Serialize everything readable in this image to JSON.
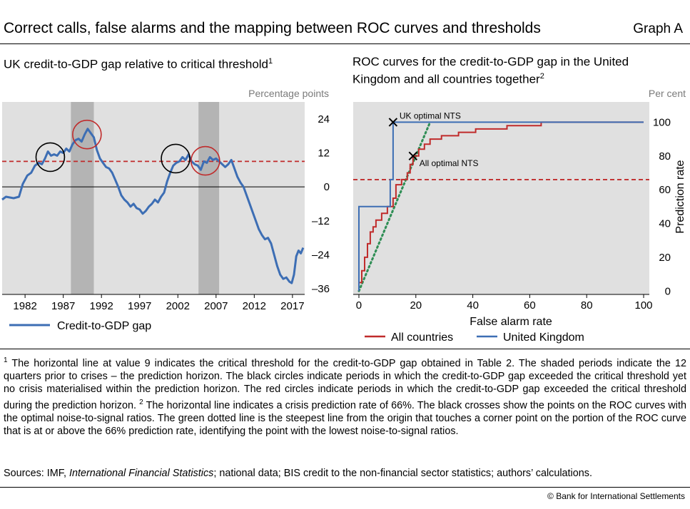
{
  "header": {
    "title": "Correct calls, false alarms and the mapping between ROC curves and thresholds",
    "graph_label": "Graph A"
  },
  "left_panel": {
    "title": "UK credit-to-GDP gap relative to critical threshold",
    "title_sup": "1",
    "units": "Percentage points"
  },
  "right_panel": {
    "title_line1": "ROC curves for the credit-to-GDP gap in the United",
    "title_line2": "Kingdom and all countries together",
    "title_sup": "2",
    "units": "Per cent"
  },
  "footnote": {
    "mark1": "1",
    "text1": "The horizontal line at value 9 indicates the critical threshold for the credit-to-GDP gap obtained in Table 2. The shaded periods indicate the 12 quarters prior to crises – the prediction horizon. The black circles indicate periods in which the credit-to-GDP gap exceeded the critical threshold yet no crisis materialised within the prediction horizon. The red circles indicate periods in which the credit-to-GDP gap exceeded the critical threshold during the prediction horizon.",
    "mark2": "2",
    "text2": "The horizontal line indicates a crisis prediction rate of 66%. The black crosses show the points on the ROC curves with the optimal noise-to-signal ratios. The green dotted line is the steepest line from the origin that touches a corner point on the portion of the ROC curve that is at or above the 66% prediction rate, identifying the point with the lowest noise-to-signal ratios."
  },
  "sources": {
    "prefix": "Sources: IMF, ",
    "italic": "International Financial Statistics",
    "suffix": "; national data; BIS credit to the non-financial sector statistics; authors’ calculations."
  },
  "copyright": "© Bank for International Settlements",
  "chart_data": [
    {
      "type": "line",
      "xlim": [
        1979.0,
        2018.6
      ],
      "ylim": [
        -38,
        30
      ],
      "x_ticks": [
        "1982",
        "1987",
        "1992",
        "1997",
        "2002",
        "2007",
        "2012",
        "2017"
      ],
      "y_ticks": [
        24,
        12,
        0,
        -12,
        -24,
        -36
      ],
      "y_tick_labels": [
        "24",
        "12",
        "0",
        "–12",
        "–24",
        "–36"
      ],
      "grid": false,
      "threshold": 9,
      "shaded_periods": [
        [
          1988.0,
          1991.0
        ],
        [
          2004.7,
          2007.4
        ]
      ],
      "black_circles": [
        {
          "x": 1985.3,
          "y": 10.5
        },
        {
          "x": 2001.7,
          "y": 10.0
        }
      ],
      "red_circles": [
        {
          "x": 1990.1,
          "y": 18.5
        },
        {
          "x": 2005.6,
          "y": 9.2
        }
      ],
      "legend": [
        {
          "name": "Credit-to-GDP gap",
          "color": "#3d6eb4"
        }
      ],
      "series": [
        {
          "name": "Credit-to-GDP gap",
          "color": "#3d6eb4",
          "points": [
            [
              1979.0,
              -4.5
            ],
            [
              1979.5,
              -3.5
            ],
            [
              1980.5,
              -4.0
            ],
            [
              1981.2,
              -3.5
            ],
            [
              1981.7,
              1.0
            ],
            [
              1982.3,
              4.0
            ],
            [
              1982.8,
              5.0
            ],
            [
              1983.3,
              7.5
            ],
            [
              1983.8,
              8.5
            ],
            [
              1984.2,
              8.0
            ],
            [
              1984.6,
              10.0
            ],
            [
              1985.0,
              12.5
            ],
            [
              1985.4,
              11.0
            ],
            [
              1985.8,
              11.5
            ],
            [
              1986.2,
              11.0
            ],
            [
              1986.6,
              12.5
            ],
            [
              1987.0,
              12.0
            ],
            [
              1987.4,
              13.5
            ],
            [
              1987.8,
              12.5
            ],
            [
              1988.2,
              15.0
            ],
            [
              1988.6,
              16.5
            ],
            [
              1989.0,
              17.0
            ],
            [
              1989.4,
              16.0
            ],
            [
              1989.8,
              18.5
            ],
            [
              1990.2,
              20.5
            ],
            [
              1990.6,
              19.0
            ],
            [
              1991.0,
              17.5
            ],
            [
              1991.4,
              13.0
            ],
            [
              1991.8,
              10.0
            ],
            [
              1992.2,
              8.5
            ],
            [
              1992.6,
              7.0
            ],
            [
              1993.0,
              6.5
            ],
            [
              1993.4,
              5.0
            ],
            [
              1993.8,
              2.5
            ],
            [
              1994.2,
              0.0
            ],
            [
              1994.6,
              -3.0
            ],
            [
              1995.0,
              -4.5
            ],
            [
              1995.4,
              -5.5
            ],
            [
              1995.8,
              -7.0
            ],
            [
              1996.2,
              -6.0
            ],
            [
              1996.6,
              -7.5
            ],
            [
              1997.0,
              -8.0
            ],
            [
              1997.4,
              -9.5
            ],
            [
              1997.8,
              -8.5
            ],
            [
              1998.2,
              -7.0
            ],
            [
              1998.6,
              -6.0
            ],
            [
              1999.0,
              -4.5
            ],
            [
              1999.4,
              -5.5
            ],
            [
              1999.8,
              -3.5
            ],
            [
              2000.2,
              -2.0
            ],
            [
              2000.6,
              2.0
            ],
            [
              2001.0,
              5.0
            ],
            [
              2001.4,
              7.5
            ],
            [
              2001.8,
              8.5
            ],
            [
              2002.2,
              9.0
            ],
            [
              2002.6,
              10.5
            ],
            [
              2003.0,
              9.5
            ],
            [
              2003.4,
              11.5
            ],
            [
              2003.8,
              9.0
            ],
            [
              2004.2,
              8.0
            ],
            [
              2004.6,
              7.5
            ],
            [
              2005.0,
              6.0
            ],
            [
              2005.4,
              9.0
            ],
            [
              2005.8,
              8.5
            ],
            [
              2006.2,
              10.5
            ],
            [
              2006.6,
              9.5
            ],
            [
              2007.0,
              10.0
            ],
            [
              2007.4,
              9.0
            ],
            [
              2007.8,
              8.0
            ],
            [
              2008.2,
              7.0
            ],
            [
              2008.6,
              8.0
            ],
            [
              2009.0,
              9.5
            ],
            [
              2009.4,
              6.5
            ],
            [
              2009.8,
              3.5
            ],
            [
              2010.2,
              1.5
            ],
            [
              2010.6,
              0.0
            ],
            [
              2011.0,
              -3.0
            ],
            [
              2011.4,
              -6.0
            ],
            [
              2011.8,
              -9.0
            ],
            [
              2012.2,
              -12.0
            ],
            [
              2012.6,
              -15.0
            ],
            [
              2013.0,
              -17.0
            ],
            [
              2013.4,
              -18.5
            ],
            [
              2013.8,
              -18.0
            ],
            [
              2014.2,
              -20.0
            ],
            [
              2014.6,
              -24.0
            ],
            [
              2015.0,
              -28.0
            ],
            [
              2015.4,
              -31.0
            ],
            [
              2015.8,
              -32.5
            ],
            [
              2016.2,
              -32.0
            ],
            [
              2016.6,
              -33.5
            ],
            [
              2016.9,
              -34.0
            ],
            [
              2017.2,
              -31.0
            ],
            [
              2017.5,
              -24.5
            ],
            [
              2017.8,
              -22.5
            ],
            [
              2018.1,
              -23.5
            ],
            [
              2018.4,
              -21.5
            ]
          ]
        }
      ]
    },
    {
      "type": "line",
      "xlabel": "False alarm rate",
      "ylabel": "Prediction rate",
      "xlim": [
        -2,
        102
      ],
      "ylim": [
        -2,
        112
      ],
      "x_ticks": [
        0,
        20,
        40,
        60,
        80,
        100
      ],
      "y_ticks": [
        0,
        20,
        40,
        60,
        80,
        100
      ],
      "grid": false,
      "prediction_rate_line": 66,
      "optimal_points": [
        {
          "label": "UK optimal NTS",
          "x": 12,
          "y": 100
        },
        {
          "label": "All optimal NTS",
          "x": 19,
          "y": 80
        }
      ],
      "steepest_line": {
        "color": "#2f8e55",
        "from": [
          0,
          0
        ],
        "to": [
          25,
          100
        ]
      },
      "legend": [
        {
          "name": "All countries",
          "color": "#c02b2b"
        },
        {
          "name": "United Kingdom",
          "color": "#3d6eb4"
        }
      ],
      "series": [
        {
          "name": "All countries",
          "color": "#c02b2b",
          "points": [
            [
              0,
              0
            ],
            [
              0,
              5
            ],
            [
              1,
              5
            ],
            [
              1,
              12
            ],
            [
              2,
              12
            ],
            [
              2,
              20
            ],
            [
              3,
              20
            ],
            [
              3,
              28
            ],
            [
              4,
              28
            ],
            [
              4,
              35
            ],
            [
              5,
              35
            ],
            [
              5,
              38
            ],
            [
              6,
              38
            ],
            [
              6,
              42
            ],
            [
              8,
              42
            ],
            [
              8,
              46
            ],
            [
              10,
              46
            ],
            [
              10,
              50
            ],
            [
              12,
              50
            ],
            [
              12,
              55
            ],
            [
              13,
              55
            ],
            [
              13,
              63
            ],
            [
              15,
              63
            ],
            [
              15,
              66
            ],
            [
              17,
              66
            ],
            [
              17,
              70
            ],
            [
              18,
              70
            ],
            [
              18,
              75
            ],
            [
              19,
              75
            ],
            [
              19,
              80
            ],
            [
              21,
              80
            ],
            [
              21,
              84
            ],
            [
              23,
              84
            ],
            [
              23,
              87
            ],
            [
              25,
              87
            ],
            [
              25,
              90
            ],
            [
              29,
              90
            ],
            [
              29,
              92
            ],
            [
              35,
              92
            ],
            [
              35,
              94
            ],
            [
              41,
              94
            ],
            [
              41,
              96
            ],
            [
              52,
              96
            ],
            [
              52,
              98
            ],
            [
              64,
              98
            ],
            [
              64,
              100
            ],
            [
              100,
              100
            ]
          ]
        },
        {
          "name": "United Kingdom",
          "color": "#3d6eb4",
          "points": [
            [
              0,
              0
            ],
            [
              0,
              50
            ],
            [
              11,
              50
            ],
            [
              11,
              66
            ],
            [
              12,
              66
            ],
            [
              12,
              100
            ],
            [
              100,
              100
            ]
          ]
        }
      ]
    }
  ]
}
